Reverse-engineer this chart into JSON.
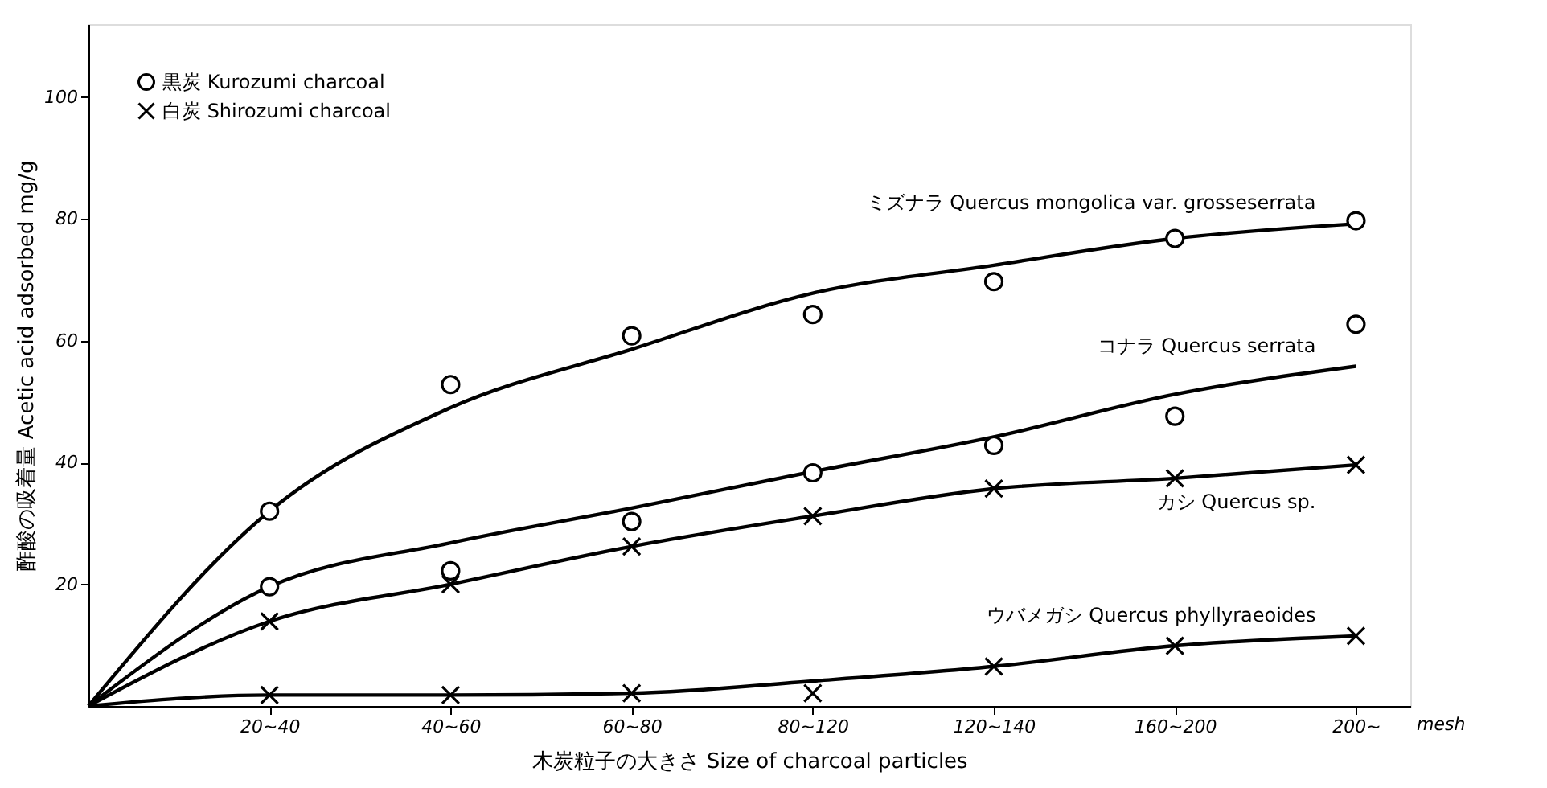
{
  "chart_data": {
    "type": "line",
    "xlabel": "木炭粒子の大きさ  Size of charcoal particles",
    "ylabel": "酢酸の吸着量  Acetic acid adsorbed  mg/g",
    "annotations": [
      "mesh"
    ],
    "categories": [
      null,
      "20~40",
      "40~60",
      "60~80",
      "80~120",
      "120~140",
      "160~200",
      "200~"
    ],
    "ylim": [
      0,
      112
    ],
    "yticks": [
      20,
      40,
      60,
      80,
      100
    ],
    "grid": false,
    "legend": "top left",
    "series": [
      {
        "name": "ミズナラ Quercus mongolica var. grosseserrata",
        "marker": "none",
        "color": "#000000",
        "values": [
          0,
          32.0,
          49.0,
          58.6,
          67.8,
          72.4,
          76.8,
          79.2
        ]
      },
      {
        "name": "コナラ Quercus serrata",
        "marker": "none",
        "color": "#000000",
        "values": [
          0,
          19.6,
          26.8,
          32.5,
          38.5,
          44.2,
          51.2,
          55.8
        ]
      },
      {
        "name": "カシ Quercus sp.",
        "marker": "none",
        "color": "#000000",
        "values": [
          0,
          13.9,
          20.0,
          26.2,
          31.2,
          35.7,
          37.4,
          39.6
        ]
      },
      {
        "name": "ウバメガシ Quercus phyllyraeoides",
        "marker": "none",
        "color": "#000000",
        "values": [
          0,
          1.8,
          1.8,
          2.1,
          4.1,
          6.5,
          9.9,
          11.5
        ]
      },
      {
        "name": "黒炭 Kurozumi charcoal",
        "type": "scatter",
        "marker": "circle",
        "color": "#000000",
        "x": [
          "20~40",
          "40~60",
          "60~80",
          "80~120",
          "120~140",
          "160~200",
          "200~",
          "20~40",
          "40~60",
          "60~80",
          "80~120",
          "120~140",
          "160~200",
          "200~"
        ],
        "values": [
          32.0,
          52.8,
          60.8,
          64.3,
          69.7,
          76.8,
          79.7,
          19.6,
          22.2,
          30.3,
          38.3,
          42.8,
          47.6,
          62.7
        ]
      },
      {
        "name": "白炭 Shirozumi charcoal",
        "type": "scatter",
        "marker": "cross",
        "color": "#000000",
        "x": [
          "20~40",
          "40~60",
          "60~80",
          "80~120",
          "120~140",
          "160~200",
          "200~",
          "20~40",
          "40~60",
          "60~80",
          "80~120",
          "120~140",
          "160~200",
          "200~"
        ],
        "values": [
          13.9,
          20.0,
          26.2,
          31.2,
          35.7,
          37.4,
          39.6,
          1.8,
          1.8,
          2.1,
          2.1,
          6.5,
          9.9,
          11.5
        ]
      }
    ]
  }
}
